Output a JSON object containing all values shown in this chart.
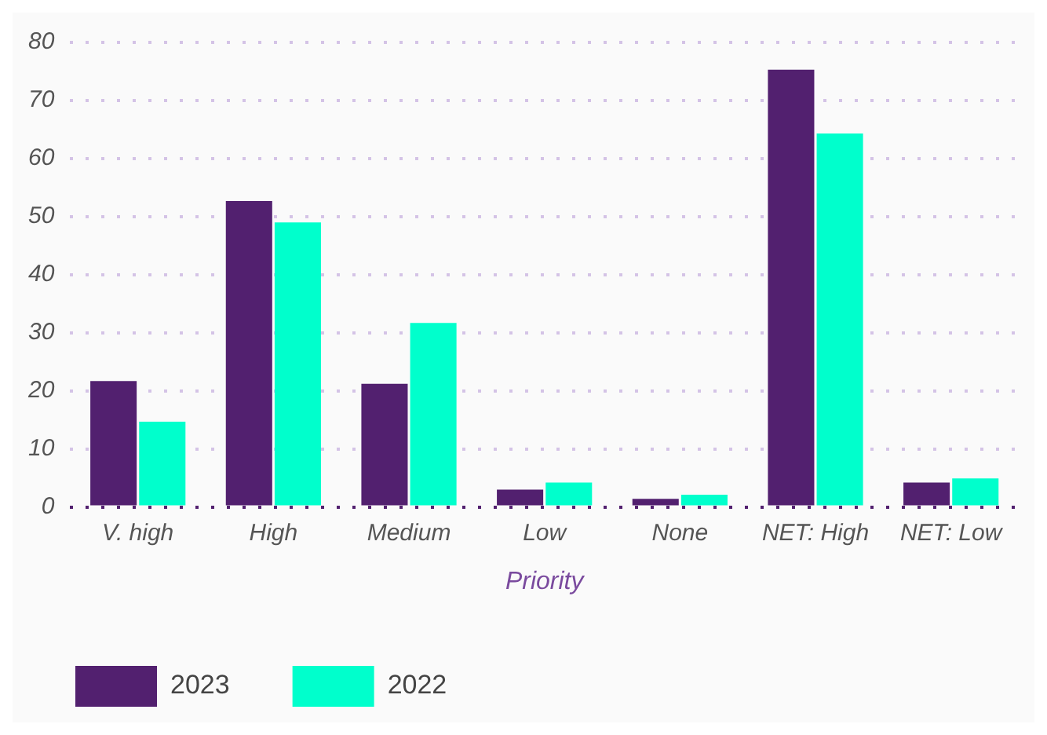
{
  "chart_data": {
    "type": "bar",
    "xlabel": "Priority",
    "categories": [
      "V. high",
      "High",
      "Medium",
      "Low",
      "None",
      "NET: High",
      "NET: Low"
    ],
    "series": [
      {
        "name": "2023",
        "color": "#52206f",
        "values": [
          21.7,
          52.7,
          21.2,
          3.0,
          1.4,
          75.3,
          4.2
        ]
      },
      {
        "name": "2022",
        "color": "#00ffcc",
        "values": [
          14.7,
          49.0,
          31.7,
          4.2,
          2.1,
          64.3,
          4.9
        ]
      }
    ],
    "ylim": [
      0,
      80
    ],
    "yticks": [
      0,
      10,
      20,
      30,
      40,
      50,
      60,
      70,
      80
    ],
    "grid": "y",
    "legend": "bottom"
  }
}
